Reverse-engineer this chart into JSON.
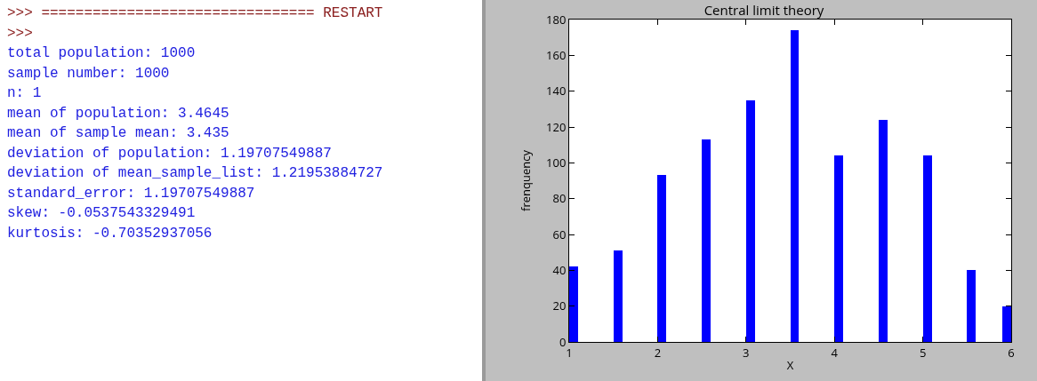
{
  "chart_data": [
    {
      "type": "other",
      "annotations": [
        ">>> ================================ RESTART",
        ">>>",
        "total population: 1000",
        "sample number: 1000",
        "n: 1",
        "mean of population: 3.4645",
        "mean of sample mean: 3.435",
        "deviation of population: 1.19707549887",
        "deviation of mean_sample_list: 1.21953884727",
        "standard_error: 1.19707549887",
        "skew: -0.0537543329491",
        "kurtosis: -0.70352937056"
      ]
    },
    {
      "type": "histogram",
      "title": "Central limit theory",
      "xlabel": "X",
      "ylabel": "frenquency",
      "color": "#0000ff",
      "bins": [
        1.0,
        1.1,
        1.2,
        1.3,
        1.4,
        1.5,
        1.6,
        1.7,
        1.8,
        1.9,
        2.0,
        2.1,
        2.2,
        2.3,
        2.4,
        2.5,
        2.6,
        2.7,
        2.8,
        2.9,
        3.0,
        3.1,
        3.2,
        3.3,
        3.4,
        3.5,
        3.6,
        3.7,
        3.8,
        3.9,
        4.0,
        4.1,
        4.2,
        4.3,
        4.4,
        4.5,
        4.6,
        4.7,
        4.8,
        4.9,
        5.0,
        5.1,
        5.2,
        5.3,
        5.4,
        5.5,
        5.6,
        5.7,
        5.8,
        5.9,
        6.0
      ],
      "values": [
        42,
        0,
        0,
        0,
        0,
        51,
        0,
        0,
        0,
        0,
        93,
        0,
        0,
        0,
        0,
        113,
        0,
        0,
        0,
        0,
        135,
        0,
        0,
        0,
        0,
        174,
        0,
        0,
        0,
        0,
        104,
        0,
        0,
        0,
        0,
        124,
        0,
        0,
        0,
        0,
        104,
        0,
        0,
        0,
        0,
        40,
        0,
        0,
        0,
        20
      ],
      "xlim": [
        1,
        6
      ],
      "xticks": [
        1,
        2,
        3,
        4,
        5,
        6
      ],
      "ylim": [
        0,
        180
      ],
      "yticks": [
        0,
        20,
        40,
        60,
        80,
        100,
        120,
        140,
        160,
        180
      ]
    }
  ]
}
